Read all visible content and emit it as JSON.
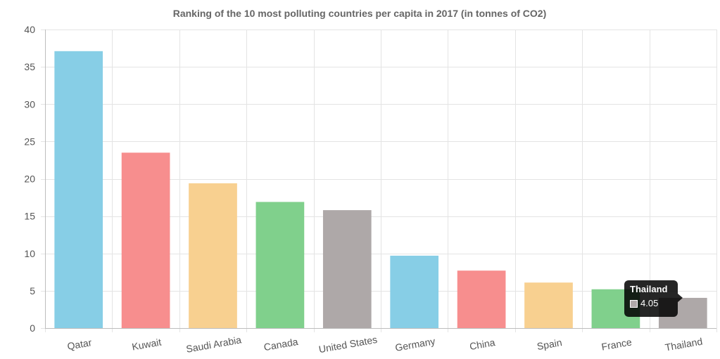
{
  "chart_data": {
    "type": "bar",
    "title": "Ranking of the 10 most polluting countries per capita in 2017 (in tonnes of CO2)",
    "categories": [
      "Qatar",
      "Kuwait",
      "Saudi Arabia",
      "Canada",
      "United States",
      "Germany",
      "China",
      "Spain",
      "France",
      "Thailand"
    ],
    "values": [
      37.1,
      23.5,
      19.4,
      16.9,
      15.8,
      9.7,
      7.7,
      6.1,
      5.2,
      4.05
    ],
    "colors": [
      "#87CEE6",
      "#F78E8E",
      "#F8D090",
      "#80D08C",
      "#AEA8A8",
      "#87CEE6",
      "#F78E8E",
      "#F8D090",
      "#80D08C",
      "#AEA8A8"
    ],
    "ylim": [
      0,
      40
    ],
    "yticks": [
      0,
      5,
      10,
      15,
      20,
      25,
      30,
      35,
      40
    ],
    "xlabel": "",
    "ylabel": "",
    "grid": true
  },
  "tooltip": {
    "title": "Thailand",
    "value": "4.05",
    "swatch_color": "#AEA8A8"
  }
}
